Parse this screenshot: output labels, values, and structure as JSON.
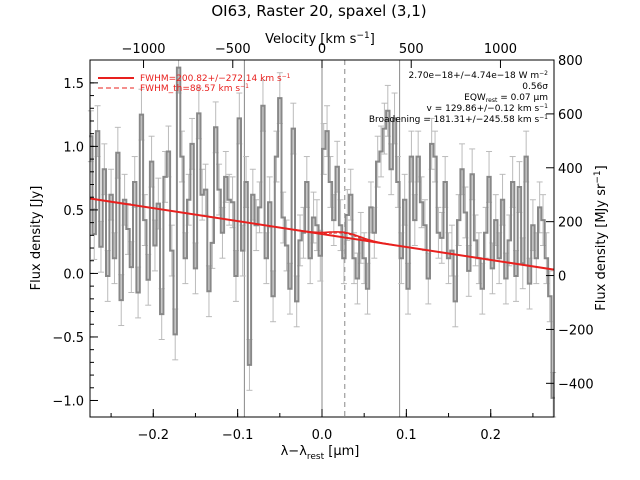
{
  "chart_data": {
    "type": "line",
    "title": "OI63, Raster 20, spaxel (3,1)",
    "xlabel": "λ−λ",
    "xlabel_sub": "rest",
    "xlabel_unit": " [μm]",
    "ylabel": "Flux density [Jy]",
    "top_xlabel": "Velocity [km s",
    "top_xlabel_sup": "−1",
    "top_xlabel_end": "]",
    "right_ylabel": "Flux density [MJy sr",
    "right_ylabel_sup": "−1",
    "right_ylabel_end": "]",
    "xlim": [
      -0.275,
      0.275
    ],
    "ylim": [
      -1.13,
      1.68
    ],
    "top_xlim": [
      -1300,
      1300
    ],
    "right_ylim": [
      -525,
      800
    ],
    "x_ticks": [
      -0.2,
      -0.1,
      0.0,
      0.1,
      0.2
    ],
    "x_tick_labels": [
      "−0.2",
      "−0.1",
      "0.0",
      "0.1",
      "0.2"
    ],
    "y_ticks": [
      -1.0,
      -0.5,
      0.0,
      0.5,
      1.0,
      1.5
    ],
    "y_tick_labels": [
      "−1.0",
      "−0.5",
      "0.0",
      "0.5",
      "1.0",
      "1.5"
    ],
    "top_ticks": [
      -1000,
      -500,
      0,
      500,
      1000
    ],
    "top_tick_labels": [
      "−1000",
      "−500",
      "0",
      "500",
      "1000"
    ],
    "right_ticks": [
      -400,
      -200,
      0,
      200,
      400,
      600,
      800
    ],
    "right_tick_labels": [
      "−400",
      "−200",
      "0",
      "200",
      "400",
      "600",
      "800"
    ],
    "vertical_lines_solid": [
      -0.092,
      0.0,
      0.092
    ],
    "vertical_line_dashed": 0.027,
    "legend": [
      {
        "label": "FWHM=200.82+/−272.14 km s",
        "sup": "−1",
        "style": "solid"
      },
      {
        "label": "FWHM_th=88.57 km s",
        "sup": "−1",
        "style": "dashed"
      }
    ],
    "annotations": [
      {
        "text": "2.70e−18+/−4.74e−18 W m",
        "sup": "−2"
      },
      {
        "text": "0.56σ",
        "sup": ""
      },
      {
        "text": "EQW",
        "sub": "rest",
        "text_end": " = 0.07 μm"
      },
      {
        "text": "v = 129.86+/−0.12 km s",
        "sup": "−1"
      },
      {
        "text": "Broadening = 181.31+/−245.58 km s",
        "sup": "−1"
      }
    ],
    "continuum": {
      "x": [
        -0.275,
        0.275
      ],
      "y": [
        0.59,
        0.03
      ]
    },
    "fit": {
      "center": 0.027,
      "amplitude": 0.04,
      "sigma": 0.018
    },
    "spectrum": {
      "x": [
        -0.274,
        -0.27,
        -0.266,
        -0.262,
        -0.258,
        -0.254,
        -0.25,
        -0.246,
        -0.242,
        -0.238,
        -0.234,
        -0.23,
        -0.226,
        -0.222,
        -0.218,
        -0.214,
        -0.21,
        -0.206,
        -0.202,
        -0.198,
        -0.194,
        -0.19,
        -0.186,
        -0.182,
        -0.178,
        -0.174,
        -0.17,
        -0.166,
        -0.162,
        -0.158,
        -0.154,
        -0.15,
        -0.146,
        -0.142,
        -0.138,
        -0.134,
        -0.13,
        -0.126,
        -0.122,
        -0.118,
        -0.114,
        -0.11,
        -0.106,
        -0.102,
        -0.098,
        -0.094,
        -0.09,
        -0.086,
        -0.082,
        -0.078,
        -0.074,
        -0.07,
        -0.066,
        -0.062,
        -0.058,
        -0.054,
        -0.05,
        -0.046,
        -0.042,
        -0.038,
        -0.034,
        -0.03,
        -0.026,
        -0.022,
        -0.018,
        -0.014,
        -0.01,
        -0.006,
        -0.002,
        0.002,
        0.006,
        0.01,
        0.014,
        0.018,
        0.022,
        0.026,
        0.03,
        0.034,
        0.038,
        0.042,
        0.046,
        0.05,
        0.054,
        0.058,
        0.062,
        0.066,
        0.07,
        0.074,
        0.078,
        0.082,
        0.086,
        0.09,
        0.094,
        0.098,
        0.102,
        0.106,
        0.11,
        0.114,
        0.118,
        0.122,
        0.126,
        0.13,
        0.134,
        0.138,
        0.142,
        0.146,
        0.15,
        0.154,
        0.158,
        0.162,
        0.166,
        0.17,
        0.174,
        0.178,
        0.182,
        0.186,
        0.19,
        0.194,
        0.198,
        0.202,
        0.206,
        0.21,
        0.214,
        0.218,
        0.222,
        0.226,
        0.23,
        0.234,
        0.238,
        0.242,
        0.246,
        0.25,
        0.254,
        0.258,
        0.262,
        0.266,
        0.27,
        0.274
      ],
      "y": [
        1.08,
        0.31,
        1.12,
        0.21,
        0.82,
        -0.02,
        0.62,
        0.12,
        0.95,
        -0.21,
        0.58,
        0.35,
        0.05,
        0.72,
        -0.15,
        1.25,
        0.42,
        -0.05,
        0.88,
        0.22,
        0.55,
        -0.32,
        0.76,
        0.96,
        0.18,
        -0.48,
        1.62,
        0.92,
        0.12,
        0.58,
        1.02,
        0.04,
        1.26,
        0.62,
        0.66,
        -0.14,
        0.24,
        1.15,
        0.66,
        0.32,
        0.76,
        0.58,
        0.56,
        -0.02,
        1.22,
        0.18,
        0.72,
        -0.72,
        0.62,
        0.38,
        0.52,
        1.32,
        0.12,
        0.56,
        -0.18,
        0.92,
        1.38,
        0.44,
        0.22,
        -0.12,
        1.14,
        -0.22,
        0.26,
        0.32,
        0.72,
        0.12,
        0.44,
        0.38,
        0.14,
        0.98,
        1.12,
        0.72,
        0.42,
        0.84,
        0.38,
        0.12,
        0.46,
        0.62,
        0.12,
        -0.04,
        0.28,
        0.12,
        -0.12,
        0.52,
        0.32,
        0.88,
        0.96,
        1.14,
        1.28,
        0.82,
        1.22,
        0.72,
        0.12,
        0.58,
        -0.12,
        0.92,
        0.42,
        0.92,
        0.56,
        0.38,
        -0.04,
        1.02,
        0.92,
        0.32,
        0.28,
        0.72,
        0.12,
        0.18,
        -0.22,
        0.42,
        0.82,
        0.48,
        0.02,
        0.78,
        0.26,
        0.12,
        -0.12,
        0.32,
        0.76,
        0.04,
        0.42,
        0.12,
        0.58,
        -0.04,
        0.26,
        0.72,
        -0.02,
        0.68,
        0.08,
        0.92,
        -0.08,
        0.38,
        0.12,
        0.52,
        0.42,
        0.12,
        -0.18,
        -0.98
      ],
      "err": 0.2
    },
    "colors": {
      "spectrum": "#888888",
      "fit": "#e8201e",
      "error": "#bbbbbb",
      "vline": "#888888"
    }
  }
}
